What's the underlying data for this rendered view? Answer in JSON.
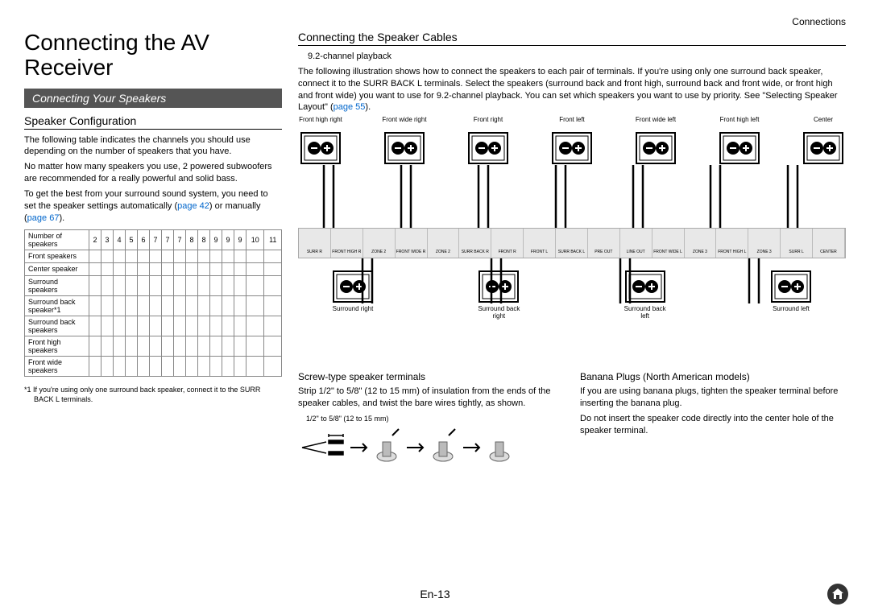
{
  "header": {
    "section": "Connections"
  },
  "title": "Connecting the AV Receiver",
  "section_bar": "Connecting Your Speakers",
  "left": {
    "h3": "Speaker Configuration",
    "p1": "The following table indicates the channels you should use depending on the number of speakers that you have.",
    "p2": "No matter how many speakers you use, 2 powered subwoofers are recommended for a really powerful and solid bass.",
    "p3_a": "To get the best from your surround sound system, you need to set the speaker settings automatically (",
    "p3_link1": "page 42",
    "p3_b": ") or manually (",
    "p3_link2": "page 67",
    "p3_c": ").",
    "table": {
      "col_header": "Number of speakers",
      "cols": [
        "2",
        "3",
        "4",
        "5",
        "6",
        "7",
        "7",
        "7",
        "8",
        "8",
        "9",
        "9",
        "9",
        "10",
        "11"
      ],
      "rows": [
        "Front speakers",
        "Center speaker",
        "Surround speakers",
        "Surround back speaker*1",
        "Surround back speakers",
        "Front high speakers",
        "Front wide speakers"
      ]
    },
    "footnote": "*1  If you're using only one surround back speaker, connect it to the SURR BACK L terminals."
  },
  "right": {
    "h3": "Connecting the Speaker Cables",
    "sub": "9.2-channel playback",
    "para_a": "The following illustration shows how to connect the speakers to each pair of terminals. If you're using only one surround back speaker, connect it to the SURR BACK L terminals. Select the speakers (surround back and front high, surround back and front wide, or front high and front wide) you want to use for 9.2-channel playback. You can set which speakers you want to use by priority. See \"Selecting Speaker Layout\" (",
    "para_link": "page 55",
    "para_b": ").",
    "top_speakers": [
      "Front high right",
      "Front wide right",
      "Front right",
      "Front left",
      "Front wide left",
      "Front high left",
      "Center"
    ],
    "bottom_speakers": [
      "Surround right",
      "Surround back right",
      "Surround back left",
      "Surround left"
    ],
    "terminals": [
      "SURR R",
      "FRONT HIGH R",
      "ZONE 2",
      "FRONT WIDE R",
      "ZONE 2",
      "SURR BACK R",
      "FRONT R",
      "FRONT L",
      "SURR BACK L",
      "PRE OUT",
      "LINE OUT",
      "FRONT WIDE L",
      "ZONE 3",
      "FRONT HIGH L",
      "ZONE 3",
      "SURR L",
      "CENTER"
    ],
    "screw": {
      "title": "Screw-type speaker terminals",
      "text": "Strip 1/2\" to 5/8\" (12 to 15 mm) of insulation from the ends of the speaker cables, and twist the bare wires tightly, as shown.",
      "measure": "1/2\" to 5/8\" (12 to 15 mm)"
    },
    "banana": {
      "title": "Banana Plugs (North American models)",
      "text1": "If you are using banana plugs, tighten the speaker terminal before inserting the banana plug.",
      "text2": "Do not insert the speaker code directly into the center hole of the speaker terminal."
    }
  },
  "page": "En-13",
  "colors": {
    "link": "#0066cc",
    "bar_bg": "#555555"
  }
}
